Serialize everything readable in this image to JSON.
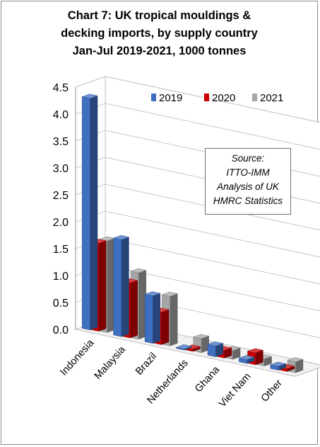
{
  "chart_data": {
    "type": "bar",
    "title_lines": [
      "Chart 7: UK tropical mouldings &",
      "decking imports, by supply country",
      "Jan-Jul 2019-2021, 1000 tonnes"
    ],
    "categories": [
      "Indonesia",
      "Malaysia",
      "Brazil",
      "Netherlands",
      "Ghana",
      "Viet Nam",
      "Other"
    ],
    "series": [
      {
        "name": "2019",
        "values": [
          4.3,
          1.8,
          0.88,
          0.02,
          0.2,
          0.07,
          0.07
        ],
        "color": "#3f6fc1"
      },
      {
        "name": "2020",
        "values": [
          1.63,
          1.02,
          0.6,
          0.04,
          0.14,
          0.22,
          0.05
        ],
        "color": "#cc0000"
      },
      {
        "name": "2021",
        "values": [
          1.7,
          1.23,
          0.92,
          0.26,
          0.16,
          0.13,
          0.2
        ],
        "color": "#a6a6a6"
      }
    ],
    "yticks": [
      "0.0",
      "0.5",
      "1.0",
      "1.5",
      "2.0",
      "2.5",
      "3.0",
      "3.5",
      "4.0",
      "4.5"
    ],
    "ylim": [
      0,
      4.5
    ],
    "grid": true,
    "legend_position": "top-right",
    "three_d": true,
    "source_lines": [
      "Source:",
      "ITTO-IMM",
      "Analysis of UK",
      "HMRC Statistics"
    ]
  }
}
